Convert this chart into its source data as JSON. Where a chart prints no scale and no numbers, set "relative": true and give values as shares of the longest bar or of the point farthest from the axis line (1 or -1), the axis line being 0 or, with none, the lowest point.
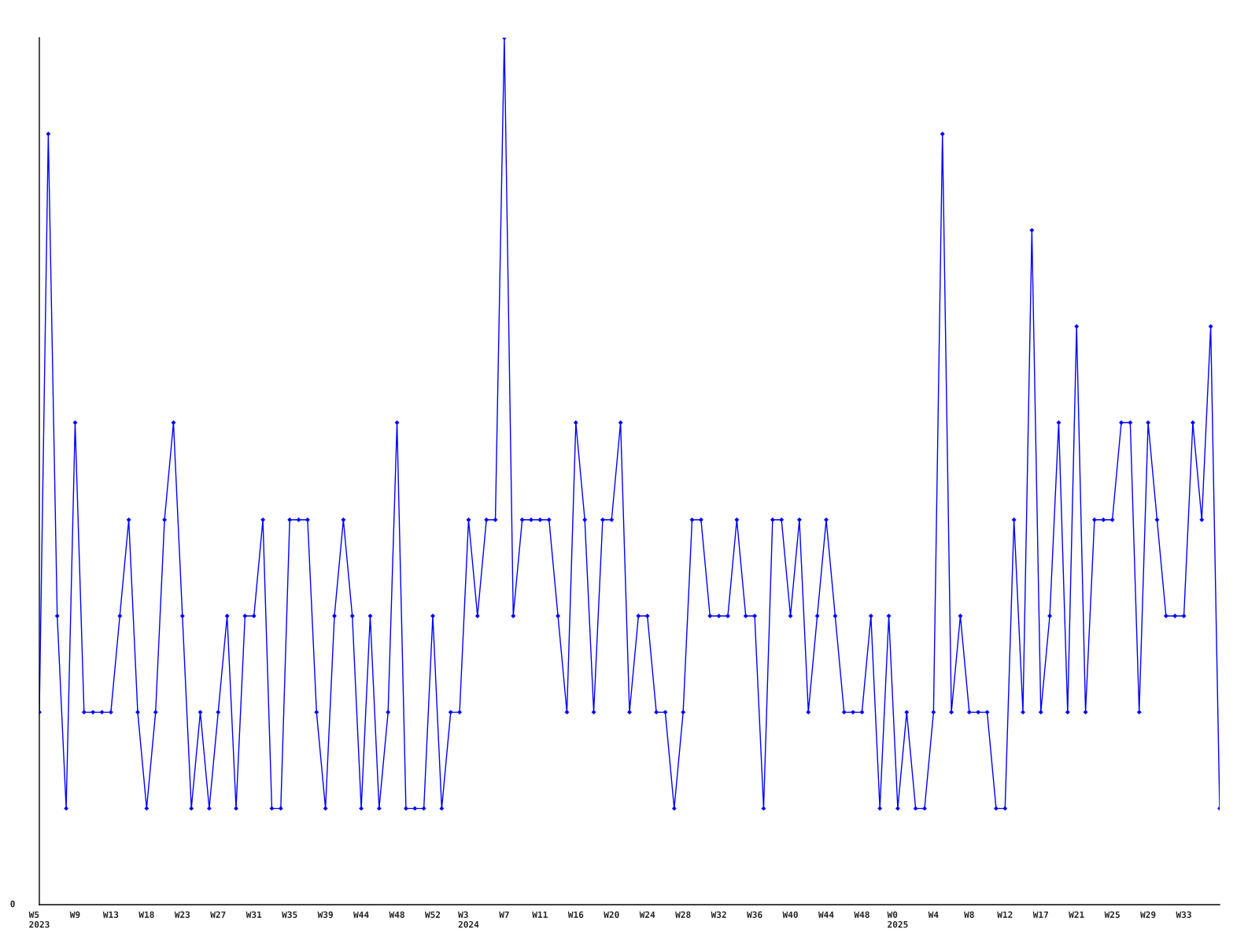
{
  "chart_data": {
    "type": "line",
    "relative": true,
    "marker": "diamond",
    "line_style": "solid",
    "color": "#0000ff",
    "categories": [
      "W5\n2023",
      null,
      null,
      null,
      "W9",
      null,
      null,
      null,
      "W13",
      null,
      null,
      null,
      "W18",
      null,
      null,
      null,
      "W23",
      null,
      null,
      null,
      "W27",
      null,
      null,
      null,
      "W31",
      null,
      null,
      null,
      "W35",
      null,
      null,
      null,
      "W39",
      null,
      null,
      null,
      "W44",
      null,
      null,
      null,
      "W48",
      null,
      null,
      null,
      "W52",
      null,
      null,
      null,
      "W3\n2024",
      null,
      null,
      null,
      "W7",
      null,
      null,
      null,
      "W11",
      null,
      null,
      null,
      "W16",
      null,
      null,
      null,
      "W20",
      null,
      null,
      null,
      "W24",
      null,
      null,
      null,
      "W28",
      null,
      null,
      null,
      "W32",
      null,
      null,
      null,
      "W36",
      null,
      null,
      null,
      "W40",
      null,
      null,
      null,
      "W44",
      null,
      null,
      null,
      "W48",
      null,
      null,
      null,
      "W0\n2025",
      null,
      null,
      null,
      "W4",
      null,
      null,
      null,
      "W8",
      null,
      null,
      null,
      "W12",
      null,
      null,
      null,
      "W17",
      null,
      null,
      null,
      "W21",
      null,
      null,
      null,
      "W25",
      null,
      null,
      null,
      "W29",
      null,
      null,
      null,
      "W33",
      null,
      null,
      null,
      null
    ],
    "values": [
      0.222,
      0.889,
      0.333,
      0.111,
      0.556,
      0.222,
      0.222,
      0.222,
      0.222,
      0.333,
      0.444,
      0.222,
      0.111,
      0.222,
      0.444,
      0.556,
      0.333,
      0.111,
      0.222,
      0.111,
      0.222,
      0.333,
      0.111,
      0.333,
      0.333,
      0.444,
      0.111,
      0.111,
      0.444,
      0.444,
      0.444,
      0.222,
      0.111,
      0.333,
      0.444,
      0.333,
      0.111,
      0.333,
      0.111,
      0.222,
      0.556,
      0.111,
      0.111,
      0.111,
      0.333,
      0.111,
      0.222,
      0.222,
      0.444,
      0.333,
      0.444,
      0.444,
      1,
      0.333,
      0.444,
      0.444,
      0.444,
      0.444,
      0.333,
      0.222,
      0.556,
      0.444,
      0.222,
      0.444,
      0.444,
      0.556,
      0.222,
      0.333,
      0.333,
      0.222,
      0.222,
      0.111,
      0.222,
      0.444,
      0.444,
      0.333,
      0.333,
      0.333,
      0.444,
      0.333,
      0.333,
      0.111,
      0.444,
      0.444,
      0.333,
      0.444,
      0.222,
      0.333,
      0.444,
      0.333,
      0.222,
      0.222,
      0.222,
      0.333,
      0.111,
      0.333,
      0.111,
      0.222,
      0.111,
      0.111,
      0.222,
      0.889,
      0.222,
      0.333,
      0.222,
      0.222,
      0.222,
      0.111,
      0.111,
      0.444,
      0.222,
      0.778,
      0.222,
      0.333,
      0.556,
      0.222,
      0.667,
      0.222,
      0.444,
      0.444,
      0.444,
      0.556,
      0.556,
      0.222,
      0.556,
      0.444,
      0.333,
      0.333,
      0.333,
      0.556,
      0.444,
      0.667,
      0.111
    ],
    "annotations": [
      "0"
    ]
  }
}
